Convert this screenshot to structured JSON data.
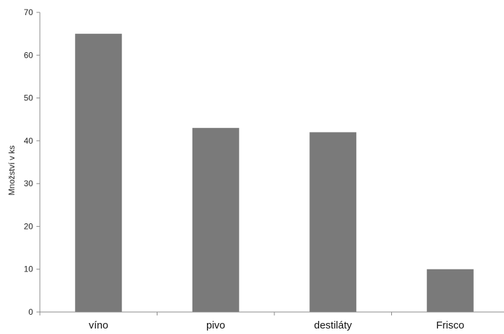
{
  "chart_data": {
    "type": "bar",
    "categories": [
      "víno",
      "pivo",
      "destiláty",
      "Frisco"
    ],
    "values": [
      65,
      43,
      42,
      10
    ],
    "xlabel": "",
    "ylabel": "Množství  v ks",
    "ylim": [
      0,
      70
    ],
    "yticks": [
      0,
      10,
      20,
      30,
      40,
      50,
      60,
      70
    ],
    "grid": false,
    "legend": "none",
    "bar_color": "#7a7a7a",
    "axis_color": "#888888"
  }
}
